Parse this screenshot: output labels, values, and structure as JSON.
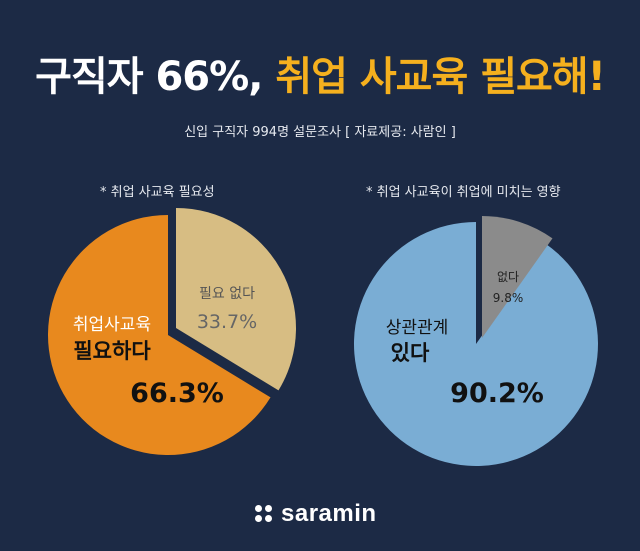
{
  "header": {
    "title_white": "구직자 66%,",
    "title_yellow": "취업 사교육 필요해!",
    "subtitle": "신입 구직자 994명 설문조사 [ 자료제공: 사람인 ]"
  },
  "chart_data": [
    {
      "type": "pie",
      "title": "* 취업 사교육  필요성",
      "slices": [
        {
          "line1": "취업사교육",
          "line2": "필요하다",
          "value": 66.3,
          "value_text": "66.3%",
          "color": "#e8891e"
        },
        {
          "line1": "필요 없다",
          "line2": "",
          "value": 33.7,
          "value_text": "33.7%",
          "color": "#d7bd83"
        }
      ]
    },
    {
      "type": "pie",
      "title": "* 취업 사교육이 취업에 미치는 영향",
      "slices": [
        {
          "line1": "상관관계",
          "line2": "있다",
          "value": 90.2,
          "value_text": "90.2%",
          "color": "#7aadd4"
        },
        {
          "line1": "없다",
          "line2": "",
          "value": 9.8,
          "value_text": "9.8%",
          "color": "#8b8b8b"
        }
      ]
    }
  ],
  "footer": {
    "logo_text": "saramin"
  }
}
